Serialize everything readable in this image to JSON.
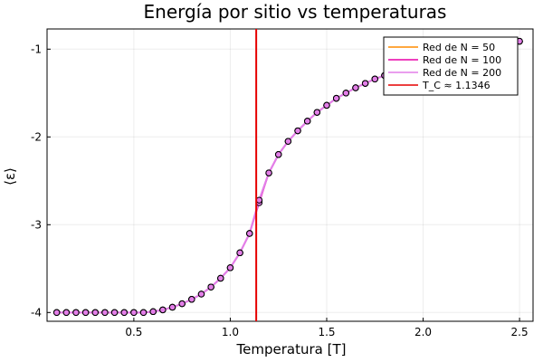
{
  "chart_data": {
    "type": "line",
    "title": "Energía por sitio vs temperaturas",
    "xlabel": "Temperatura [T]",
    "ylabel": "⟨ε⟩",
    "xlim": [
      0.05,
      2.57
    ],
    "ylim": [
      -4.1,
      -0.77
    ],
    "xticks": [
      0.5,
      1.0,
      1.5,
      2.0,
      2.5
    ],
    "xtick_labels": [
      "0.5",
      "1.0",
      "1.5",
      "2.0",
      "2.5"
    ],
    "yticks": [
      -4,
      -3,
      -2,
      -1
    ],
    "ytick_labels": [
      "-4",
      "-3",
      "-2",
      "-1"
    ],
    "grid": true,
    "legend_position": "top-right",
    "x": [
      0.1,
      0.15,
      0.2,
      0.25,
      0.3,
      0.35,
      0.4,
      0.45,
      0.5,
      0.55,
      0.6,
      0.65,
      0.7,
      0.75,
      0.8,
      0.85,
      0.9,
      0.95,
      1.0,
      1.05,
      1.1,
      1.15,
      1.2,
      1.25,
      1.3,
      1.35,
      1.4,
      1.45,
      1.5,
      1.55,
      1.6,
      1.65,
      1.7,
      1.75,
      1.8,
      1.85,
      1.9,
      1.95,
      2.0,
      2.05,
      2.1,
      2.15,
      2.2,
      2.25,
      2.3,
      2.35,
      2.4,
      2.45,
      2.5
    ],
    "series": [
      {
        "name": "Red de N = 50",
        "color": "#ff8c00",
        "values": [
          -4.0,
          -4.0,
          -4.0,
          -4.0,
          -4.0,
          -4.0,
          -4.0,
          -4.0,
          -4.0,
          -4.0,
          -3.99,
          -3.97,
          -3.94,
          -3.9,
          -3.85,
          -3.79,
          -3.71,
          -3.61,
          -3.49,
          -3.32,
          -3.1,
          -2.73,
          -2.41,
          -2.2,
          -2.05,
          -1.93,
          -1.82,
          -1.72,
          -1.64,
          -1.56,
          -1.5,
          -1.44,
          -1.39,
          -1.34,
          -1.3,
          -1.26,
          -1.22,
          -1.19,
          -1.16,
          -1.13,
          -1.1,
          -1.07,
          -1.05,
          -1.02,
          -1.0,
          -0.98,
          -0.95,
          -0.93,
          -0.91
        ]
      },
      {
        "name": "Red de N = 100",
        "color": "#e800a8",
        "values": [
          -4.0,
          -4.0,
          -4.0,
          -4.0,
          -4.0,
          -4.0,
          -4.0,
          -4.0,
          -4.0,
          -4.0,
          -3.99,
          -3.97,
          -3.94,
          -3.9,
          -3.85,
          -3.79,
          -3.71,
          -3.61,
          -3.49,
          -3.32,
          -3.1,
          -2.75,
          -2.41,
          -2.2,
          -2.05,
          -1.93,
          -1.82,
          -1.72,
          -1.64,
          -1.56,
          -1.5,
          -1.44,
          -1.39,
          -1.34,
          -1.3,
          -1.26,
          -1.22,
          -1.19,
          -1.16,
          -1.13,
          -1.1,
          -1.07,
          -1.05,
          -1.02,
          -1.0,
          -0.98,
          -0.95,
          -0.93,
          -0.91
        ]
      },
      {
        "name": "Red de N = 200",
        "color": "#e37ee8",
        "values": [
          -4.0,
          -4.0,
          -4.0,
          -4.0,
          -4.0,
          -4.0,
          -4.0,
          -4.0,
          -4.0,
          -4.0,
          -3.99,
          -3.97,
          -3.94,
          -3.9,
          -3.85,
          -3.79,
          -3.71,
          -3.61,
          -3.49,
          -3.32,
          -3.1,
          -2.72,
          -2.41,
          -2.2,
          -2.05,
          -1.93,
          -1.82,
          -1.72,
          -1.64,
          -1.56,
          -1.5,
          -1.44,
          -1.39,
          -1.34,
          -1.3,
          -1.26,
          -1.22,
          -1.19,
          -1.16,
          -1.13,
          -1.1,
          -1.07,
          -1.05,
          -1.02,
          -1.0,
          -0.98,
          -0.95,
          -0.93,
          -0.91
        ]
      }
    ],
    "vline": {
      "x": 1.1346,
      "label": "T_C ≈ 1.1346",
      "color": "#e60000"
    },
    "marker": {
      "fill": "#e37ee8",
      "stroke": "#000000"
    }
  }
}
